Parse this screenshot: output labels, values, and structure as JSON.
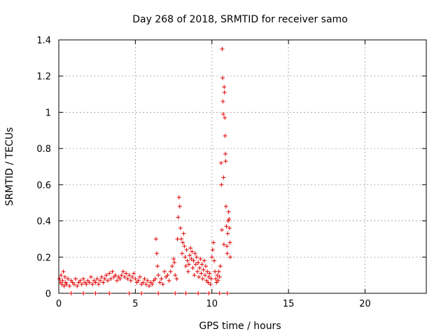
{
  "chart_data": {
    "type": "scatter",
    "title": "Day 268 of 2018, SRMTID for receiver samo",
    "xlabel": "GPS time / hours",
    "ylabel": "SRMTID / TECUs",
    "xlim": [
      0,
      24
    ],
    "ylim": [
      0,
      1.4
    ],
    "xticks": [
      0,
      5,
      10,
      15,
      20
    ],
    "yticks": [
      0,
      0.2,
      0.4,
      0.6,
      0.8,
      1,
      1.2,
      1.4
    ],
    "xtick_labels": [
      "0",
      "5",
      "10",
      "15",
      "20"
    ],
    "ytick_labels": [
      "0",
      "0.2",
      "0.4",
      "0.6",
      "0.8",
      "1",
      "1.2",
      "1.4"
    ],
    "grid": true,
    "marker": "+",
    "color": "#e00000",
    "series": [
      {
        "name": "SRMTID",
        "points": [
          [
            0.05,
            0.08
          ],
          [
            0.1,
            0.06
          ],
          [
            0.15,
            0.1
          ],
          [
            0.2,
            0.05
          ],
          [
            0.25,
            0.07
          ],
          [
            0.3,
            0.12
          ],
          [
            0.35,
            0.04
          ],
          [
            0.4,
            0.09
          ],
          [
            0.45,
            0.06
          ],
          [
            0.5,
            0.05
          ],
          [
            0.6,
            0.08
          ],
          [
            0.7,
            0.04
          ],
          [
            0.8,
            0.07
          ],
          [
            0.9,
            0.06
          ],
          [
            1.0,
            0.05
          ],
          [
            1.1,
            0.08
          ],
          [
            1.2,
            0.04
          ],
          [
            1.3,
            0.06
          ],
          [
            1.4,
            0.07
          ],
          [
            1.5,
            0.05
          ],
          [
            1.6,
            0.08
          ],
          [
            1.7,
            0.06
          ],
          [
            1.8,
            0.05
          ],
          [
            1.9,
            0.07
          ],
          [
            2.0,
            0.06
          ],
          [
            2.1,
            0.09
          ],
          [
            2.2,
            0.05
          ],
          [
            2.3,
            0.07
          ],
          [
            2.4,
            0.06
          ],
          [
            2.5,
            0.08
          ],
          [
            2.6,
            0.05
          ],
          [
            2.7,
            0.07
          ],
          [
            2.8,
            0.09
          ],
          [
            2.9,
            0.06
          ],
          [
            3.0,
            0.08
          ],
          [
            3.1,
            0.1
          ],
          [
            3.2,
            0.07
          ],
          [
            3.3,
            0.11
          ],
          [
            3.4,
            0.08
          ],
          [
            3.5,
            0.12
          ],
          [
            3.6,
            0.09
          ],
          [
            3.7,
            0.1
          ],
          [
            3.8,
            0.07
          ],
          [
            3.9,
            0.09
          ],
          [
            4.0,
            0.08
          ],
          [
            4.1,
            0.1
          ],
          [
            4.2,
            0.12
          ],
          [
            4.3,
            0.09
          ],
          [
            4.4,
            0.11
          ],
          [
            4.5,
            0.08
          ],
          [
            4.6,
            0.1
          ],
          [
            4.7,
            0.07
          ],
          [
            4.8,
            0.09
          ],
          [
            4.9,
            0.11
          ],
          [
            5.0,
            0.08
          ],
          [
            5.1,
            0.06
          ],
          [
            5.2,
            0.07
          ],
          [
            5.3,
            0.09
          ],
          [
            5.4,
            0.05
          ],
          [
            5.5,
            0.06
          ],
          [
            5.6,
            0.08
          ],
          [
            5.7,
            0.05
          ],
          [
            5.8,
            0.07
          ],
          [
            5.9,
            0.04
          ],
          [
            6.0,
            0.06
          ],
          [
            6.1,
            0.05
          ],
          [
            6.2,
            0.07
          ],
          [
            6.3,
            0.08
          ],
          [
            6.35,
            0.3
          ],
          [
            6.4,
            0.22
          ],
          [
            6.45,
            0.15
          ],
          [
            6.5,
            0.1
          ],
          [
            6.6,
            0.06
          ],
          [
            6.7,
            0.08
          ],
          [
            6.8,
            0.05
          ],
          [
            6.9,
            0.12
          ],
          [
            7.0,
            0.09
          ],
          [
            7.1,
            0.1
          ],
          [
            7.2,
            0.07
          ],
          [
            7.3,
            0.12
          ],
          [
            7.4,
            0.15
          ],
          [
            7.5,
            0.19
          ],
          [
            7.55,
            0.17
          ],
          [
            7.6,
            0.1
          ],
          [
            7.7,
            0.08
          ],
          [
            7.75,
            0.3
          ],
          [
            7.8,
            0.42
          ],
          [
            7.85,
            0.53
          ],
          [
            7.9,
            0.48
          ],
          [
            7.95,
            0.36
          ],
          [
            8.0,
            0.3
          ],
          [
            8.05,
            0.22
          ],
          [
            8.1,
            0.28
          ],
          [
            8.15,
            0.33
          ],
          [
            8.2,
            0.26
          ],
          [
            8.25,
            0.2
          ],
          [
            8.3,
            0.15
          ],
          [
            8.35,
            0.24
          ],
          [
            8.4,
            0.18
          ],
          [
            8.45,
            0.12
          ],
          [
            8.5,
            0.16
          ],
          [
            8.55,
            0.21
          ],
          [
            8.6,
            0.25
          ],
          [
            8.65,
            0.19
          ],
          [
            8.7,
            0.23
          ],
          [
            8.75,
            0.14
          ],
          [
            8.8,
            0.18
          ],
          [
            8.85,
            0.1
          ],
          [
            8.9,
            0.22
          ],
          [
            8.95,
            0.16
          ],
          [
            9.0,
            0.2
          ],
          [
            9.05,
            0.12
          ],
          [
            9.1,
            0.17
          ],
          [
            9.15,
            0.09
          ],
          [
            9.2,
            0.14
          ],
          [
            9.25,
            0.19
          ],
          [
            9.3,
            0.11
          ],
          [
            9.35,
            0.16
          ],
          [
            9.4,
            0.08
          ],
          [
            9.45,
            0.13
          ],
          [
            9.5,
            0.18
          ],
          [
            9.55,
            0.1
          ],
          [
            9.6,
            0.15
          ],
          [
            9.65,
            0.07
          ],
          [
            9.7,
            0.12
          ],
          [
            9.75,
            0.06
          ],
          [
            9.8,
            0.09
          ],
          [
            9.85,
            0.11
          ],
          [
            9.9,
            0.05
          ],
          [
            9.95,
            0.08
          ],
          [
            10.0,
            0.2
          ],
          [
            10.05,
            0.24
          ],
          [
            10.1,
            0.28
          ],
          [
            10.15,
            0.18
          ],
          [
            10.2,
            0.12
          ],
          [
            10.25,
            0.08
          ],
          [
            10.3,
            0.06
          ],
          [
            10.35,
            0.1
          ],
          [
            10.4,
            0.07
          ],
          [
            10.45,
            0.12
          ],
          [
            10.5,
            0.09
          ],
          [
            10.55,
            0.15
          ],
          [
            10.6,
            0.72
          ],
          [
            10.62,
            0.6
          ],
          [
            10.65,
            0.35
          ],
          [
            10.67,
            1.35
          ],
          [
            10.7,
            1.19
          ],
          [
            10.72,
            1.06
          ],
          [
            10.74,
            0.99
          ],
          [
            10.76,
            0.64
          ],
          [
            10.78,
            0.27
          ],
          [
            10.8,
            1.14
          ],
          [
            10.82,
            1.11
          ],
          [
            10.84,
            0.97
          ],
          [
            10.86,
            0.87
          ],
          [
            10.88,
            0.77
          ],
          [
            10.9,
            0.73
          ],
          [
            10.92,
            0.48
          ],
          [
            10.95,
            0.37
          ],
          [
            10.98,
            0.26
          ],
          [
            11.0,
            0.22
          ],
          [
            11.03,
            0.33
          ],
          [
            11.06,
            0.4
          ],
          [
            11.09,
            0.45
          ],
          [
            11.12,
            0.41
          ],
          [
            11.15,
            0.36
          ],
          [
            11.18,
            0.28
          ],
          [
            11.2,
            0.2
          ],
          [
            0.8,
            0.0
          ],
          [
            1.6,
            0.0
          ],
          [
            2.4,
            0.0
          ],
          [
            3.3,
            0.0
          ],
          [
            4.6,
            0.0
          ],
          [
            5.4,
            0.0
          ],
          [
            6.5,
            0.0
          ],
          [
            7.6,
            0.0
          ],
          [
            8.3,
            0.0
          ],
          [
            9.1,
            0.0
          ],
          [
            9.8,
            0.0
          ],
          [
            10.5,
            0.0
          ],
          [
            11.0,
            0.0
          ]
        ]
      }
    ]
  }
}
